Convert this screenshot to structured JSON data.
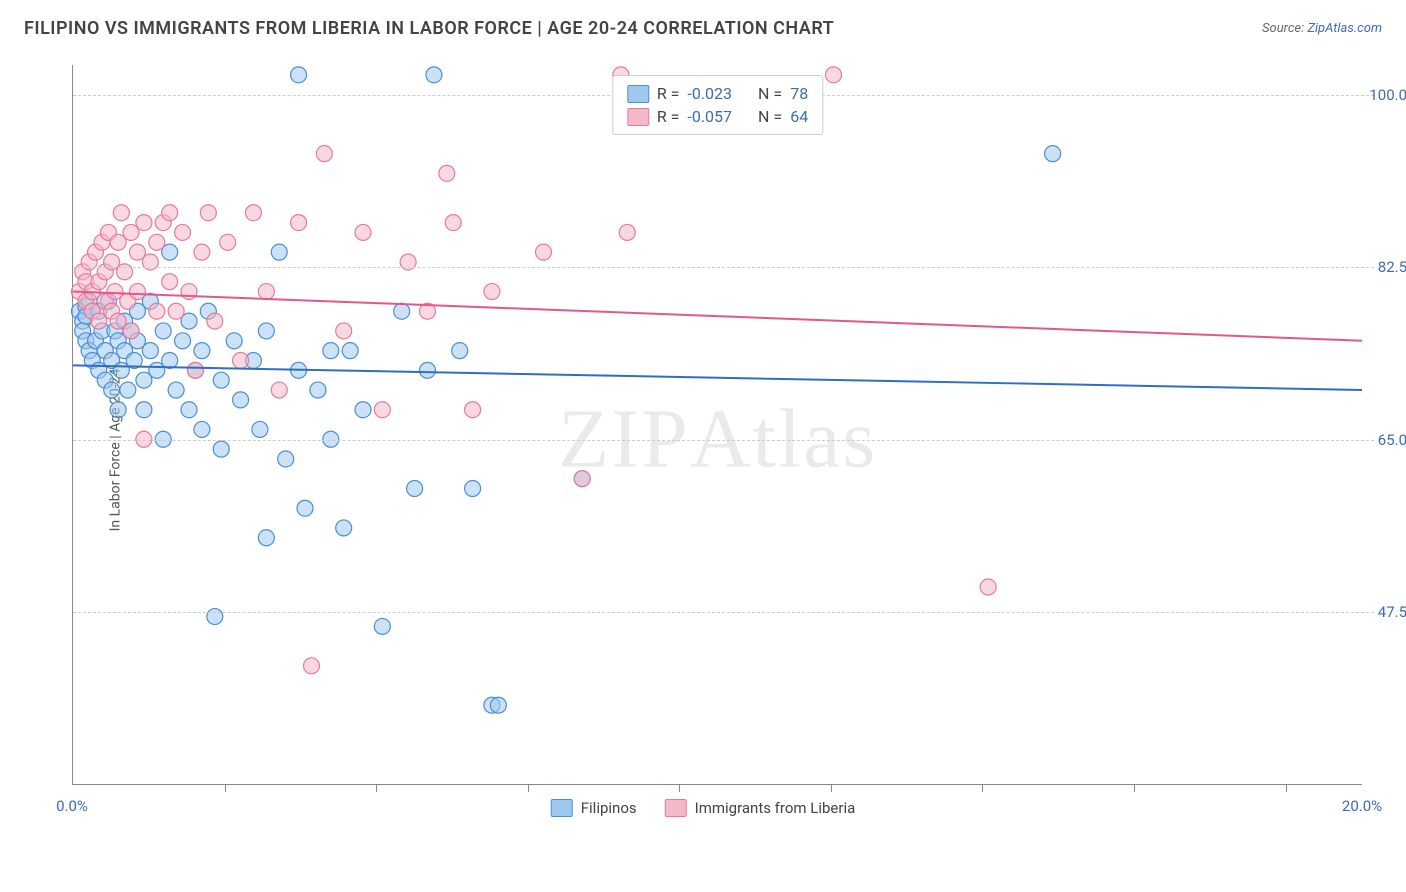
{
  "header": {
    "title": "FILIPINO VS IMMIGRANTS FROM LIBERIA IN LABOR FORCE | AGE 20-24 CORRELATION CHART",
    "source_prefix": "Source: ",
    "source_link": "ZipAtlas.com"
  },
  "chart": {
    "type": "scatter",
    "ylabel": "In Labor Force | Age 20-24",
    "xlim": [
      0,
      20
    ],
    "ylim": [
      30,
      103
    ],
    "xtick_labels": [
      {
        "pos": 0,
        "label": "0.0%"
      },
      {
        "pos": 20,
        "label": "20.0%"
      }
    ],
    "xtick_marks": [
      2.35,
      4.7,
      7.05,
      9.4,
      11.75,
      14.1,
      16.45,
      18.8
    ],
    "ytick_labels": [
      {
        "pos": 47.5,
        "label": "47.5%"
      },
      {
        "pos": 65.0,
        "label": "65.0%"
      },
      {
        "pos": 82.5,
        "label": "82.5%"
      },
      {
        "pos": 100.0,
        "label": "100.0%"
      }
    ],
    "grid_color": "#cccccc",
    "background_color": "#ffffff",
    "watermark": "ZIPAtlas",
    "series": [
      {
        "name": "Filipinos",
        "color_fill": "#9ec8ef",
        "color_stroke": "#4a8fd4",
        "marker_radius": 8,
        "fill_opacity": 0.55,
        "trend": {
          "y_at_x0": 72.5,
          "y_at_xmax": 70.0,
          "stroke": "#2e6fc0",
          "width": 2
        },
        "R": "-0.023",
        "N": "78",
        "points": [
          [
            0.1,
            78
          ],
          [
            0.15,
            77
          ],
          [
            0.15,
            76
          ],
          [
            0.2,
            78.5
          ],
          [
            0.2,
            77.5
          ],
          [
            0.2,
            75
          ],
          [
            0.25,
            79
          ],
          [
            0.25,
            74
          ],
          [
            0.3,
            78
          ],
          [
            0.3,
            73
          ],
          [
            0.35,
            75
          ],
          [
            0.4,
            78
          ],
          [
            0.4,
            72
          ],
          [
            0.45,
            76
          ],
          [
            0.5,
            74
          ],
          [
            0.5,
            71
          ],
          [
            0.55,
            79
          ],
          [
            0.6,
            73
          ],
          [
            0.6,
            70
          ],
          [
            0.65,
            76
          ],
          [
            0.7,
            75
          ],
          [
            0.7,
            68
          ],
          [
            0.75,
            72
          ],
          [
            0.8,
            74
          ],
          [
            0.8,
            77
          ],
          [
            0.85,
            70
          ],
          [
            0.9,
            76
          ],
          [
            0.95,
            73
          ],
          [
            1.0,
            75
          ],
          [
            1.0,
            78
          ],
          [
            1.1,
            71
          ],
          [
            1.1,
            68
          ],
          [
            1.2,
            74
          ],
          [
            1.2,
            79
          ],
          [
            1.3,
            72
          ],
          [
            1.4,
            76
          ],
          [
            1.4,
            65
          ],
          [
            1.5,
            73
          ],
          [
            1.5,
            84
          ],
          [
            1.6,
            70
          ],
          [
            1.7,
            75
          ],
          [
            1.8,
            68
          ],
          [
            1.8,
            77
          ],
          [
            1.9,
            72
          ],
          [
            2.0,
            74
          ],
          [
            2.0,
            66
          ],
          [
            2.1,
            78
          ],
          [
            2.2,
            47
          ],
          [
            2.3,
            71
          ],
          [
            2.3,
            64
          ],
          [
            2.5,
            75
          ],
          [
            2.6,
            69
          ],
          [
            2.8,
            73
          ],
          [
            2.9,
            66
          ],
          [
            3.0,
            55
          ],
          [
            3.0,
            76
          ],
          [
            3.2,
            84
          ],
          [
            3.3,
            63
          ],
          [
            3.5,
            72
          ],
          [
            3.5,
            102
          ],
          [
            3.6,
            58
          ],
          [
            3.8,
            70
          ],
          [
            4.0,
            74
          ],
          [
            4.0,
            65
          ],
          [
            4.2,
            56
          ],
          [
            4.3,
            74
          ],
          [
            4.5,
            68
          ],
          [
            4.8,
            46
          ],
          [
            5.1,
            78
          ],
          [
            5.3,
            60
          ],
          [
            5.5,
            72
          ],
          [
            5.6,
            102
          ],
          [
            6.0,
            74
          ],
          [
            6.2,
            60
          ],
          [
            6.5,
            38
          ],
          [
            6.6,
            38
          ],
          [
            7.9,
            61
          ],
          [
            15.2,
            94
          ]
        ]
      },
      {
        "name": "Immigrants from Liberia",
        "color_fill": "#f5b8c8",
        "color_stroke": "#e77a9a",
        "marker_radius": 8,
        "fill_opacity": 0.55,
        "trend": {
          "y_at_x0": 80.0,
          "y_at_xmax": 75.0,
          "stroke": "#e05a85",
          "width": 2
        },
        "R": "-0.057",
        "N": "64",
        "points": [
          [
            0.1,
            80
          ],
          [
            0.15,
            82
          ],
          [
            0.2,
            81
          ],
          [
            0.2,
            79
          ],
          [
            0.25,
            83
          ],
          [
            0.3,
            80
          ],
          [
            0.3,
            78
          ],
          [
            0.35,
            84
          ],
          [
            0.4,
            81
          ],
          [
            0.4,
            77
          ],
          [
            0.45,
            85
          ],
          [
            0.5,
            82
          ],
          [
            0.5,
            79
          ],
          [
            0.55,
            86
          ],
          [
            0.6,
            83
          ],
          [
            0.6,
            78
          ],
          [
            0.65,
            80
          ],
          [
            0.7,
            85
          ],
          [
            0.7,
            77
          ],
          [
            0.75,
            88
          ],
          [
            0.8,
            82
          ],
          [
            0.85,
            79
          ],
          [
            0.9,
            86
          ],
          [
            0.9,
            76
          ],
          [
            1.0,
            84
          ],
          [
            1.0,
            80
          ],
          [
            1.1,
            87
          ],
          [
            1.1,
            65
          ],
          [
            1.2,
            83
          ],
          [
            1.3,
            85
          ],
          [
            1.3,
            78
          ],
          [
            1.4,
            87
          ],
          [
            1.5,
            81
          ],
          [
            1.5,
            88
          ],
          [
            1.6,
            78
          ],
          [
            1.7,
            86
          ],
          [
            1.8,
            80
          ],
          [
            1.9,
            72
          ],
          [
            2.0,
            84
          ],
          [
            2.1,
            88
          ],
          [
            2.2,
            77
          ],
          [
            2.4,
            85
          ],
          [
            2.6,
            73
          ],
          [
            2.8,
            88
          ],
          [
            3.0,
            80
          ],
          [
            3.2,
            70
          ],
          [
            3.5,
            87
          ],
          [
            3.7,
            42
          ],
          [
            3.9,
            94
          ],
          [
            4.2,
            76
          ],
          [
            4.5,
            86
          ],
          [
            4.8,
            68
          ],
          [
            5.2,
            83
          ],
          [
            5.5,
            78
          ],
          [
            5.8,
            92
          ],
          [
            5.9,
            87
          ],
          [
            6.2,
            68
          ],
          [
            6.5,
            80
          ],
          [
            7.3,
            84
          ],
          [
            7.9,
            61
          ],
          [
            8.5,
            102
          ],
          [
            8.6,
            86
          ],
          [
            11.8,
            102
          ],
          [
            14.2,
            50
          ]
        ]
      }
    ],
    "legend_top": {
      "rows": [
        {
          "swatch_fill": "#9ec8ef",
          "swatch_stroke": "#4a8fd4",
          "R": "-0.023",
          "N": "78"
        },
        {
          "swatch_fill": "#f5b8c8",
          "swatch_stroke": "#e77a9a",
          "R": "-0.057",
          "N": "64"
        }
      ]
    },
    "legend_bottom": [
      {
        "swatch_fill": "#9ec8ef",
        "swatch_stroke": "#4a8fd4",
        "label": "Filipinos"
      },
      {
        "swatch_fill": "#f5b8c8",
        "swatch_stroke": "#e77a9a",
        "label": "Immigrants from Liberia"
      }
    ]
  }
}
